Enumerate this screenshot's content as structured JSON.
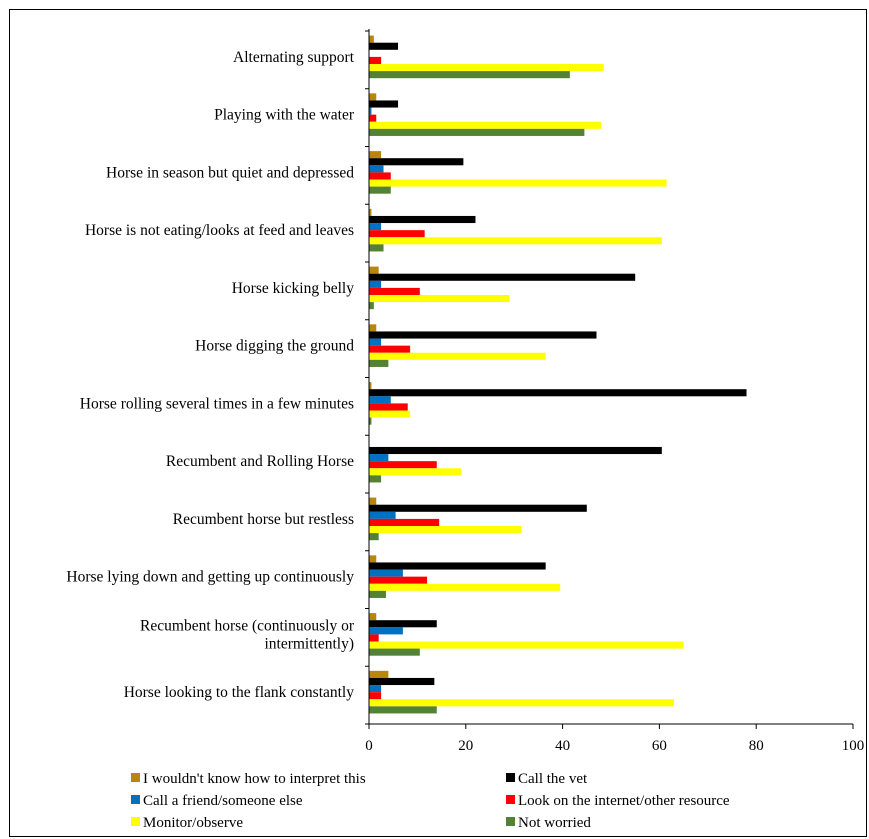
{
  "chart_data": {
    "type": "bar",
    "orientation": "horizontal",
    "title": "",
    "xlabel": "",
    "ylabel": "",
    "xlim": [
      0,
      100
    ],
    "xticks": [
      0,
      20,
      40,
      60,
      80,
      100
    ],
    "grid": false,
    "legend_position": "bottom",
    "categories": [
      [
        "Alternating support"
      ],
      [
        "Playing with the water"
      ],
      [
        "Horse in season but quiet and depressed"
      ],
      [
        "Horse is not eating/looks at feed and leaves"
      ],
      [
        "Horse kicking belly"
      ],
      [
        "Horse digging the ground"
      ],
      [
        "Horse rolling several times in a few minutes"
      ],
      [
        "Recumbent and Rolling Horse"
      ],
      [
        "Recumbent horse but restless"
      ],
      [
        "Horse lying down and getting up continuously"
      ],
      [
        "Recumbent horse (continuously or",
        "intermittently)"
      ],
      [
        "Horse looking to the flank constantly"
      ]
    ],
    "series": [
      {
        "name": "I wouldn't know how to interpret this",
        "color": "#b8860b",
        "values": [
          1,
          1.5,
          2.5,
          0.5,
          2,
          1.5,
          0.5,
          0,
          1.5,
          1.5,
          1.5,
          4
        ]
      },
      {
        "name": "Call the vet",
        "color": "#000000",
        "values": [
          6,
          6,
          19.5,
          22,
          55,
          47,
          78,
          60.5,
          45,
          36.5,
          14,
          13.5
        ]
      },
      {
        "name": "Call a friend/someone else",
        "color": "#0070c0",
        "values": [
          0,
          0.5,
          3,
          2.5,
          2.5,
          2.5,
          4.5,
          4,
          5.5,
          7,
          7,
          2.5
        ]
      },
      {
        "name": "Look on the internet/other resource",
        "color": "#ff0000",
        "values": [
          2.5,
          1.5,
          4.5,
          11.5,
          10.5,
          8.5,
          8,
          14,
          14.5,
          12,
          2,
          2.5
        ]
      },
      {
        "name": "Monitor/observe",
        "color": "#ffff00",
        "values": [
          48.5,
          48,
          61.5,
          60.5,
          29,
          36.5,
          8.5,
          19,
          31.5,
          39.5,
          65,
          63
        ]
      },
      {
        "name": "Not worried",
        "color": "#548235",
        "values": [
          41.5,
          44.5,
          4.5,
          3,
          1,
          4,
          0.5,
          2.5,
          2,
          3.5,
          10.5,
          14
        ]
      }
    ],
    "legend_order": [
      0,
      1,
      2,
      3,
      4,
      5
    ]
  }
}
